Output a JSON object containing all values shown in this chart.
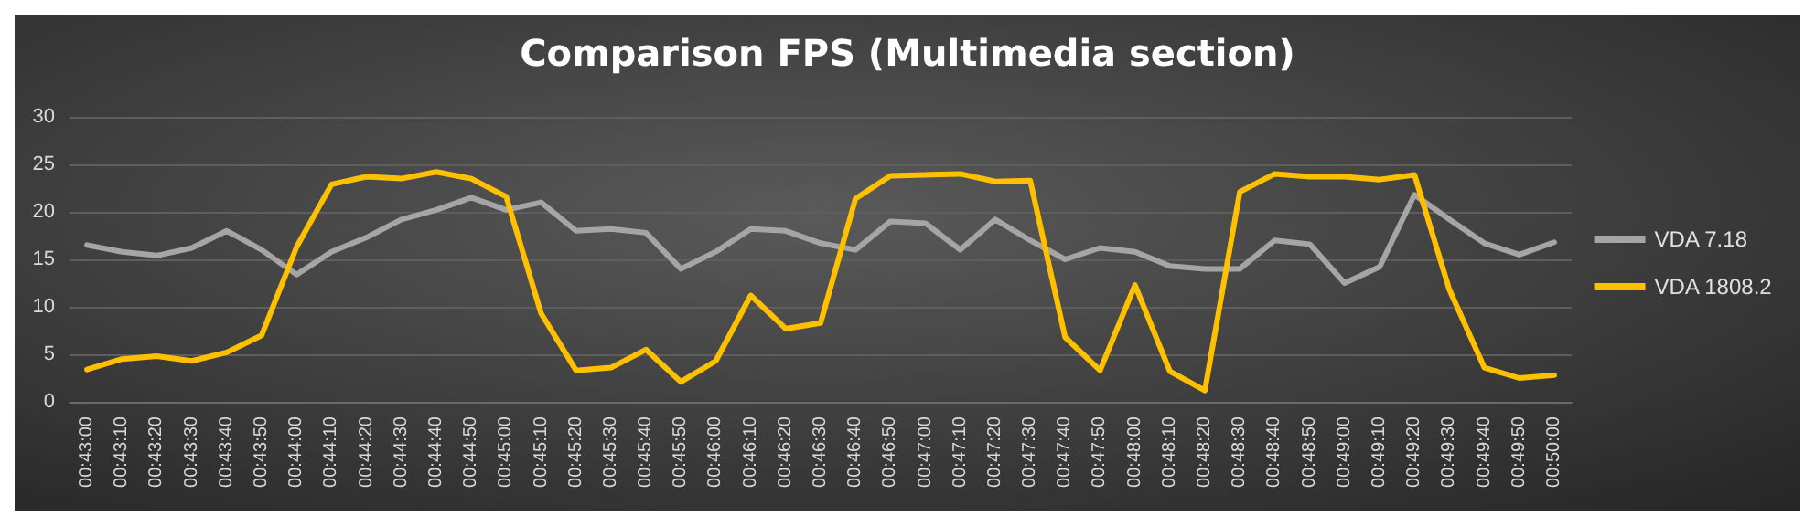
{
  "chart_data": {
    "type": "line",
    "title": "Comparison FPS (Multimedia section)",
    "categories": [
      "00:43:00",
      "00:43:10",
      "00:43:20",
      "00:43:30",
      "00:43:40",
      "00:43:50",
      "00:44:00",
      "00:44:10",
      "00:44:20",
      "00:44:30",
      "00:44:40",
      "00:44:50",
      "00:45:00",
      "00:45:10",
      "00:45:20",
      "00:45:30",
      "00:45:40",
      "00:45:50",
      "00:46:00",
      "00:46:10",
      "00:46:20",
      "00:46:30",
      "00:46:40",
      "00:46:50",
      "00:47:00",
      "00:47:10",
      "00:47:20",
      "00:47:30",
      "00:47:40",
      "00:47:50",
      "00:48:00",
      "00:48:10",
      "00:48:20",
      "00:48:30",
      "00:48:40",
      "00:48:50",
      "00:49:00",
      "00:49:10",
      "00:49:20",
      "00:49:30",
      "00:49:40",
      "00:49:50",
      "00:50:00"
    ],
    "series": [
      {
        "name": "VDA 7.18",
        "color": "#a5a5a5",
        "values": [
          16.5,
          15.8,
          15.4,
          16.2,
          18,
          16,
          13.4,
          15.8,
          17.3,
          19.2,
          20.2,
          21.5,
          20.2,
          21,
          18,
          18.2,
          17.8,
          14,
          15.8,
          18.2,
          18,
          16.7,
          16,
          19,
          18.8,
          16,
          19.2,
          17,
          15,
          16.2,
          15.8,
          14.3,
          14,
          14,
          17,
          16.6,
          12.5,
          14.2,
          21.8,
          19.2,
          16.7,
          15.5,
          16.8
        ]
      },
      {
        "name": "VDA 1808.2",
        "color": "#ffc000",
        "values": [
          3.4,
          4.5,
          4.8,
          4.3,
          5.2,
          7,
          16.3,
          22.9,
          23.7,
          23.5,
          24.2,
          23.5,
          21.6,
          9.3,
          3.3,
          3.6,
          5.5,
          2.1,
          4.3,
          11.2,
          7.7,
          8.3,
          21.4,
          23.8,
          23.9,
          24,
          23.2,
          23.3,
          6.8,
          3.3,
          12.3,
          3.2,
          1.2,
          22.1,
          24,
          23.7,
          23.7,
          23.4,
          23.9,
          11.8,
          3.6,
          2.5,
          2.8
        ]
      }
    ],
    "ylim": [
      0,
      30
    ],
    "yticks": [
      0,
      5,
      10,
      15,
      20,
      25,
      30
    ],
    "grid": "y",
    "legend": "right",
    "marker": "none",
    "line_style": "solid"
  }
}
